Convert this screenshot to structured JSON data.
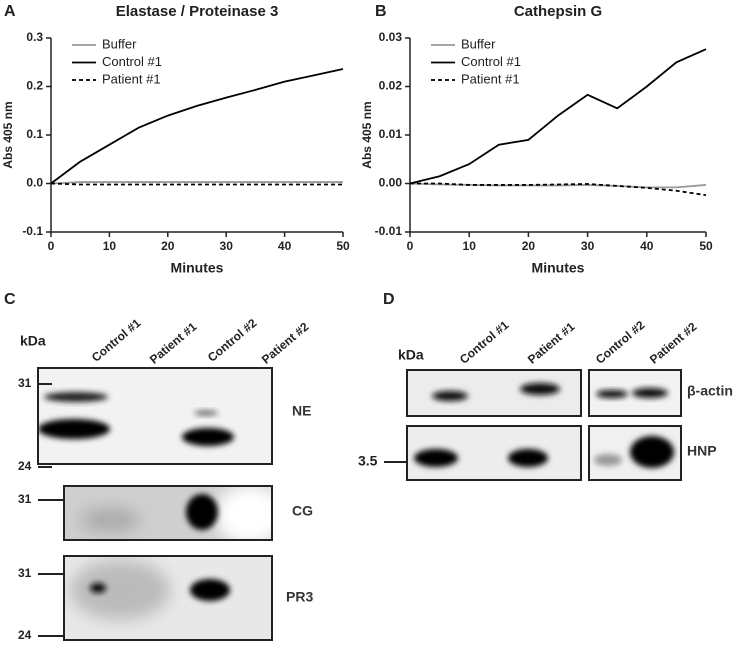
{
  "chart_data": [
    {
      "type": "line",
      "panel": "A",
      "title": "Elastase  /  Proteinase 3",
      "ylabel": "Abs 405 nm",
      "xlabel": "Minutes",
      "x": [
        0,
        5,
        10,
        15,
        20,
        25,
        30,
        35,
        40,
        45,
        50
      ],
      "xlim": [
        0,
        50
      ],
      "xticks": [
        0,
        10,
        20,
        30,
        40,
        50
      ],
      "ylim": [
        -0.1,
        0.3
      ],
      "yticks": [
        -0.1,
        {
          "value": 0,
          "label": "0.0"
        },
        0.1,
        0.2,
        0.3
      ],
      "legend": "upper left",
      "series": [
        {
          "name": "Buffer",
          "color": "#999999",
          "style": "solid",
          "values": [
            0,
            0.003,
            0.003,
            0.003,
            0.003,
            0.003,
            0.003,
            0.003,
            0.003,
            0.003,
            0.003
          ]
        },
        {
          "name": "Control #1",
          "color": "#000000",
          "style": "solid",
          "values": [
            0,
            0.045,
            0.08,
            0.115,
            0.14,
            0.16,
            0.177,
            0.193,
            0.21,
            0.223,
            0.236
          ]
        },
        {
          "name": "Patient #1",
          "color": "#000000",
          "style": "dashed",
          "values": [
            0,
            -0.002,
            -0.002,
            -0.002,
            -0.002,
            -0.002,
            -0.002,
            -0.002,
            -0.002,
            -0.002,
            -0.002
          ]
        }
      ]
    },
    {
      "type": "line",
      "panel": "B",
      "title": "Cathepsin G",
      "ylabel": "Abs 405 nm",
      "xlabel": "Minutes",
      "x": [
        0,
        5,
        10,
        15,
        20,
        25,
        30,
        35,
        40,
        45,
        50
      ],
      "xlim": [
        0,
        50
      ],
      "xticks": [
        0,
        10,
        20,
        30,
        40,
        50
      ],
      "ylim": [
        -0.01,
        0.03
      ],
      "yticks": [
        -0.01,
        {
          "value": 0,
          "label": "0.00"
        },
        0.01,
        0.02,
        0.03
      ],
      "legend": "upper left",
      "series": [
        {
          "name": "Buffer",
          "color": "#999999",
          "style": "solid",
          "values": [
            0,
            -0.0002,
            -0.0003,
            -0.0004,
            -0.0004,
            -0.0004,
            -0.0003,
            -0.0005,
            -0.0008,
            -0.0008,
            -0.0003
          ]
        },
        {
          "name": "Control #1",
          "color": "#000000",
          "style": "solid",
          "values": [
            0,
            0.0015,
            0.004,
            0.008,
            0.009,
            0.014,
            0.0183,
            0.0155,
            0.02,
            0.025,
            0.0277
          ]
        },
        {
          "name": "Patient #1",
          "color": "#000000",
          "style": "dashed",
          "values": [
            0,
            0,
            -0.0003,
            -0.0003,
            -0.0003,
            -0.0002,
            -0.0001,
            -0.0005,
            -0.0009,
            -0.0015,
            -0.0024
          ]
        }
      ]
    }
  ],
  "blots": {
    "C": {
      "panel": "C",
      "unit": "kDa",
      "lanes": [
        "Control #1",
        "Patient #1",
        "Control #2",
        "Patient #2"
      ],
      "rows": [
        {
          "label": "NE",
          "markers": [
            "31",
            "24"
          ]
        },
        {
          "label": "CG",
          "markers": [
            "31"
          ]
        },
        {
          "label": "PR3",
          "markers": [
            "31",
            "24"
          ]
        }
      ]
    },
    "D": {
      "panel": "D",
      "unit": "kDa",
      "lanes": [
        "Control #1",
        "Patient #1",
        "Control #2",
        "Patient #2"
      ],
      "rows": [
        {
          "label": "β-actin",
          "markers": []
        },
        {
          "label": "HNP",
          "markers": [
            "3.5"
          ]
        }
      ]
    }
  }
}
